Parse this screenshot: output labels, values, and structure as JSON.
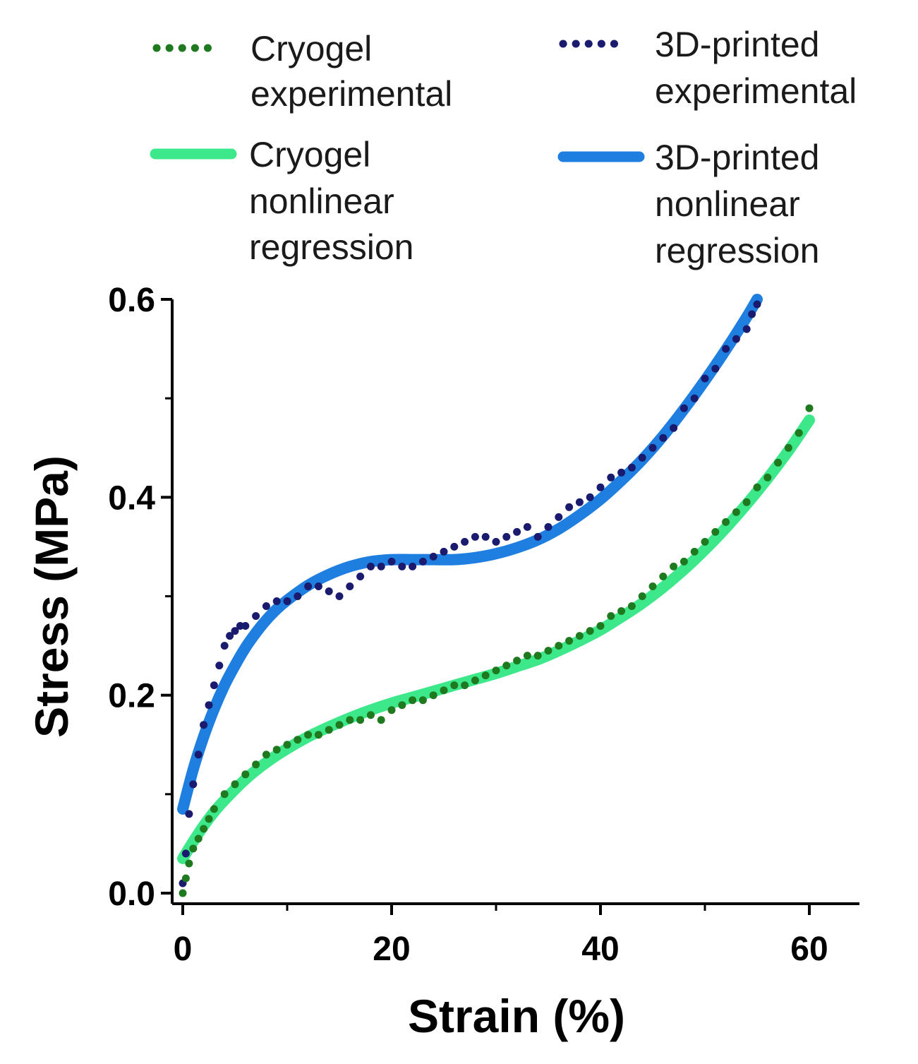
{
  "chart_data": {
    "type": "scatter",
    "xlabel": "Strain (%)",
    "ylabel": "Stress (MPa)",
    "xlim": [
      -1,
      65
    ],
    "ylim": [
      0,
      0.6
    ],
    "x_ticks": [
      0,
      20,
      40,
      60
    ],
    "x_tick_labels": [
      "0",
      "20",
      "40",
      "60"
    ],
    "x_minor_ticks": [
      10,
      30,
      50
    ],
    "y_ticks": [
      0.0,
      0.2,
      0.4,
      0.6
    ],
    "y_tick_labels": [
      "0.0",
      "0.2",
      "0.4",
      "0.6"
    ],
    "y_minor_ticks": [
      0.1,
      0.3,
      0.5
    ],
    "grid": false,
    "legend_position": "top",
    "legend": [
      {
        "key": "cryo_exp",
        "label_lines": [
          "Cryogel",
          "experimental"
        ],
        "style": "dotted"
      },
      {
        "key": "print_exp",
        "label_lines": [
          "3D-printed",
          "experimental"
        ],
        "style": "dotted"
      },
      {
        "key": "cryo_fit",
        "label_lines": [
          "Cryogel",
          "nonlinear",
          "regression"
        ],
        "style": "line"
      },
      {
        "key": "print_fit",
        "label_lines": [
          "3D-printed",
          "nonlinear",
          "regression"
        ],
        "style": "line"
      }
    ],
    "series": [
      {
        "key": "print_fit",
        "kind": "line",
        "color": "#1f7fe0",
        "x": [
          0,
          1,
          2,
          3,
          4,
          5,
          6,
          7,
          8,
          9,
          10,
          12,
          14,
          16,
          18,
          20,
          22,
          24,
          26,
          28,
          30,
          32,
          34,
          36,
          38,
          40,
          42,
          44,
          46,
          48,
          50,
          52,
          54,
          55
        ],
        "y": [
          0.085,
          0.125,
          0.158,
          0.186,
          0.21,
          0.23,
          0.248,
          0.263,
          0.276,
          0.287,
          0.296,
          0.311,
          0.322,
          0.33,
          0.335,
          0.337,
          0.337,
          0.337,
          0.337,
          0.339,
          0.343,
          0.349,
          0.357,
          0.368,
          0.382,
          0.398,
          0.417,
          0.438,
          0.462,
          0.489,
          0.518,
          0.549,
          0.582,
          0.6
        ]
      },
      {
        "key": "cryo_fit",
        "kind": "line",
        "color": "#3de88a",
        "x": [
          0,
          1,
          2,
          3,
          4,
          6,
          8,
          10,
          12,
          14,
          16,
          18,
          20,
          22,
          24,
          26,
          28,
          30,
          32,
          34,
          36,
          38,
          40,
          42,
          44,
          46,
          48,
          50,
          52,
          54,
          56,
          58,
          60
        ],
        "y": [
          0.035,
          0.052,
          0.068,
          0.082,
          0.094,
          0.115,
          0.132,
          0.146,
          0.158,
          0.168,
          0.177,
          0.185,
          0.192,
          0.198,
          0.204,
          0.21,
          0.216,
          0.222,
          0.229,
          0.236,
          0.245,
          0.255,
          0.266,
          0.279,
          0.293,
          0.309,
          0.327,
          0.347,
          0.369,
          0.393,
          0.419,
          0.447,
          0.478
        ]
      },
      {
        "key": "print_exp",
        "kind": "dots",
        "color": "#1a1a6e",
        "x": [
          0,
          0.3,
          0.6,
          1,
          1.5,
          2,
          2.5,
          3,
          3.5,
          4,
          4.5,
          5,
          5.5,
          6,
          7,
          8,
          9,
          10,
          11,
          12,
          13,
          14,
          15,
          16,
          17,
          18,
          19,
          20,
          21,
          22,
          23,
          24,
          25,
          26,
          27,
          28,
          29,
          30,
          31,
          32,
          33,
          34,
          35,
          36,
          37,
          38,
          39,
          40,
          41,
          42,
          43,
          44,
          45,
          46,
          47,
          48,
          49,
          50,
          51,
          52,
          53,
          54,
          54.5,
          55
        ],
        "y": [
          0.01,
          0.04,
          0.08,
          0.11,
          0.14,
          0.17,
          0.19,
          0.21,
          0.23,
          0.25,
          0.26,
          0.265,
          0.27,
          0.27,
          0.28,
          0.29,
          0.295,
          0.295,
          0.3,
          0.31,
          0.31,
          0.305,
          0.3,
          0.31,
          0.32,
          0.33,
          0.33,
          0.335,
          0.33,
          0.33,
          0.335,
          0.34,
          0.345,
          0.35,
          0.355,
          0.36,
          0.36,
          0.355,
          0.36,
          0.365,
          0.37,
          0.36,
          0.37,
          0.38,
          0.39,
          0.395,
          0.4,
          0.41,
          0.42,
          0.425,
          0.43,
          0.44,
          0.45,
          0.46,
          0.47,
          0.49,
          0.5,
          0.52,
          0.53,
          0.55,
          0.56,
          0.57,
          0.585,
          0.595
        ]
      },
      {
        "key": "cryo_exp",
        "kind": "dots",
        "color": "#1f7a1f",
        "x": [
          0,
          0.3,
          0.6,
          1,
          1.5,
          2,
          2.5,
          3,
          4,
          5,
          6,
          7,
          8,
          9,
          10,
          11,
          12,
          13,
          14,
          15,
          16,
          17,
          18,
          19,
          20,
          21,
          22,
          23,
          24,
          25,
          26,
          27,
          28,
          29,
          30,
          31,
          32,
          33,
          34,
          35,
          36,
          37,
          38,
          39,
          40,
          41,
          42,
          43,
          44,
          45,
          46,
          47,
          48,
          49,
          50,
          51,
          52,
          53,
          54,
          55,
          56,
          57,
          58,
          59,
          60
        ],
        "y": [
          0.0,
          0.015,
          0.03,
          0.045,
          0.055,
          0.065,
          0.075,
          0.085,
          0.1,
          0.11,
          0.12,
          0.13,
          0.14,
          0.145,
          0.15,
          0.155,
          0.16,
          0.16,
          0.165,
          0.17,
          0.175,
          0.175,
          0.18,
          0.175,
          0.185,
          0.19,
          0.195,
          0.195,
          0.2,
          0.205,
          0.21,
          0.21,
          0.215,
          0.22,
          0.225,
          0.23,
          0.235,
          0.24,
          0.24,
          0.245,
          0.25,
          0.255,
          0.26,
          0.265,
          0.27,
          0.28,
          0.285,
          0.29,
          0.3,
          0.31,
          0.32,
          0.33,
          0.335,
          0.345,
          0.355,
          0.365,
          0.375,
          0.385,
          0.395,
          0.41,
          0.42,
          0.435,
          0.45,
          0.465,
          0.49
        ]
      }
    ]
  }
}
